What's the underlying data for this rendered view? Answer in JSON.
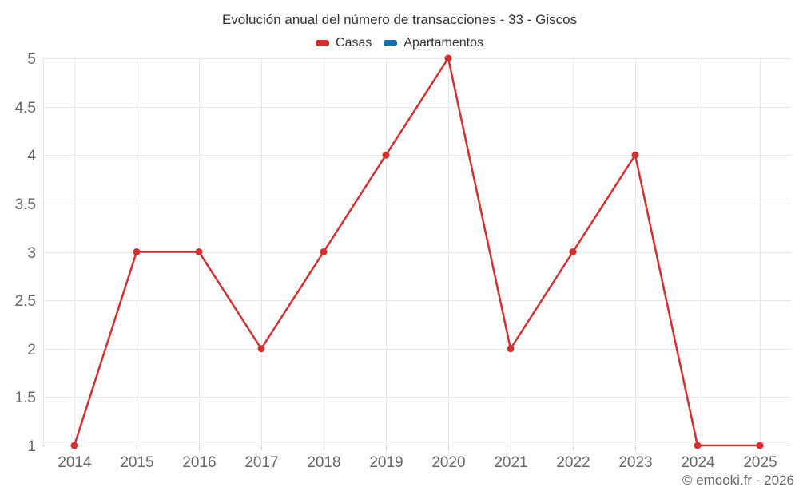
{
  "chart_data": {
    "type": "line",
    "title": "Evolución anual del número de transacciones - 33 - Giscos",
    "categories": [
      "2014",
      "2015",
      "2016",
      "2017",
      "2018",
      "2019",
      "2020",
      "2021",
      "2022",
      "2023",
      "2024",
      "2025"
    ],
    "series": [
      {
        "name": "Casas",
        "color": "#d32f2f",
        "values": [
          1,
          3,
          3,
          2,
          3,
          4,
          5,
          2,
          3,
          4,
          1,
          1
        ]
      },
      {
        "name": "Apartamentos",
        "color": "#1a6fa8",
        "values": []
      }
    ],
    "xlabel": "",
    "ylabel": "",
    "ylim": [
      1,
      5
    ],
    "ytick_step": 0.5,
    "grid": true,
    "legend_position": "top"
  },
  "footer": {
    "credit": "© emooki.fr - 2026"
  },
  "colors": {
    "grid": "#e6e6e6",
    "axis_line": "#c8c8c8",
    "label": "#666666",
    "title": "#333333"
  }
}
